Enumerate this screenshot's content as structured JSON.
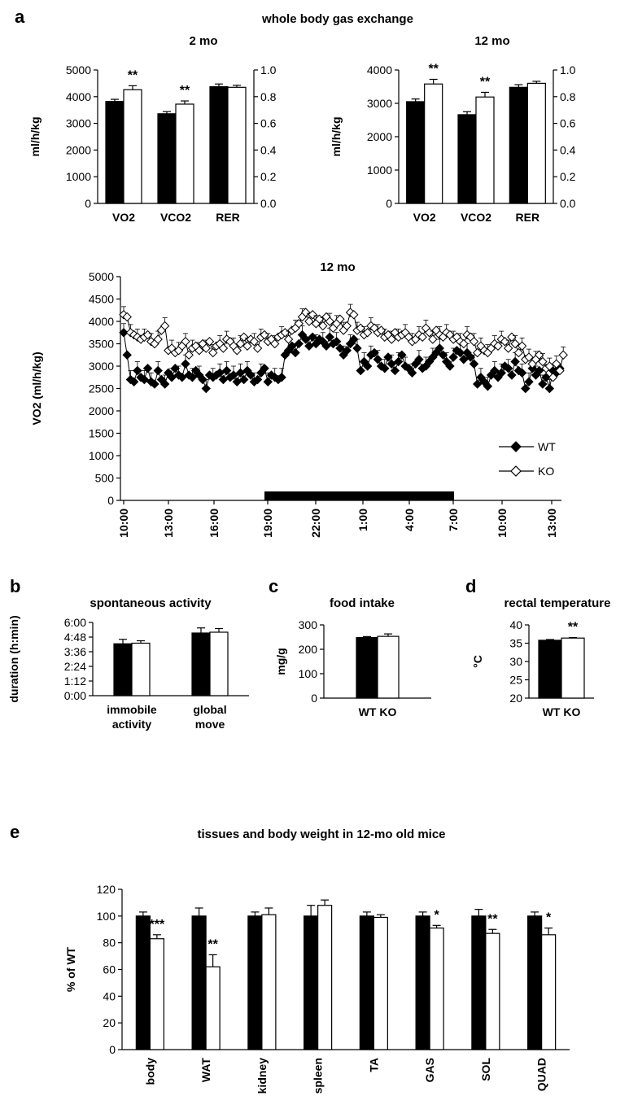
{
  "panel_a": {
    "label": "a",
    "heading": "whole body gas exchange"
  },
  "panel_b_label": "b",
  "panel_c_label": "c",
  "panel_d_label": "d",
  "panel_e_label": "e",
  "legend": {
    "wt": "WT",
    "ko": "KO"
  },
  "colors": {
    "wt": "#000000",
    "ko": "#ffffff",
    "dark_period": "#000000"
  },
  "chart_data": [
    {
      "id": "gas_2mo",
      "type": "bar",
      "title": "2 mo",
      "ylabel": "ml/h/kg",
      "ylim": [
        0,
        5000
      ],
      "yticks": [
        "0",
        "1000",
        "2000",
        "3000",
        "4000",
        "5000"
      ],
      "y2lim": [
        0,
        1.0
      ],
      "y2ticks": [
        "0.0",
        "0.2",
        "0.4",
        "0.6",
        "0.8",
        "1.0"
      ],
      "categories": [
        "VO2",
        "VCO2",
        "RER"
      ],
      "series": [
        {
          "name": "WT",
          "values": [
            3820,
            3360,
            0.875
          ],
          "errors": [
            80,
            80,
            0.02
          ]
        },
        {
          "name": "KO",
          "values": [
            4260,
            3720,
            0.87
          ],
          "errors": [
            150,
            120,
            0.015
          ]
        }
      ],
      "significance": [
        "**",
        "**",
        ""
      ]
    },
    {
      "id": "gas_12mo",
      "type": "bar",
      "title": "12 mo",
      "ylabel": "ml/h/kg",
      "ylim": [
        0,
        4000
      ],
      "yticks": [
        "0",
        "1000",
        "2000",
        "3000",
        "4000"
      ],
      "y2lim": [
        0,
        1.0
      ],
      "y2ticks": [
        "0.0",
        "0.2",
        "0.4",
        "0.6",
        "0.8",
        "1.0"
      ],
      "categories": [
        "VO2",
        "VCO2",
        "RER"
      ],
      "series": [
        {
          "name": "WT",
          "values": [
            3050,
            2660,
            0.87
          ],
          "errors": [
            80,
            90,
            0.02
          ]
        },
        {
          "name": "KO",
          "values": [
            3580,
            3190,
            0.9
          ],
          "errors": [
            140,
            140,
            0.015
          ]
        }
      ],
      "significance": [
        "**",
        "**",
        ""
      ]
    },
    {
      "id": "vo2_time",
      "type": "line",
      "title": "12 mo",
      "ylabel": "VO2 (ml/h/kg)",
      "ylim": [
        0,
        5000
      ],
      "yticks": [
        "0",
        "500",
        "1000",
        "1500",
        "2000",
        "2500",
        "3000",
        "3500",
        "4000",
        "4500",
        "5000"
      ],
      "x_tick_labels": [
        "10:00",
        "13:00",
        "16:00",
        "19:00",
        "22:00",
        "1:00",
        "4:00",
        "7:00",
        "10:00",
        "13:00"
      ],
      "dark_period": [
        "19:00",
        "7:00"
      ],
      "series": [
        {
          "name": "WT",
          "values": [
            3750,
            3250,
            2700,
            2650,
            2900,
            2750,
            2700,
            2950,
            2650,
            2600,
            2900,
            2700,
            2600,
            2850,
            2750,
            2950,
            2800,
            2750,
            3050,
            2800,
            2750,
            2900,
            2800,
            2700,
            2500,
            2800,
            2750,
            2800,
            2850,
            2700,
            2900,
            2750,
            2800,
            2650,
            2850,
            2700,
            2900,
            2800,
            2650,
            2700,
            2850,
            2950,
            2650,
            2800,
            2750,
            2700,
            2750,
            3250,
            3350,
            3450,
            3300,
            3500,
            3700,
            3600,
            3450,
            3650,
            3500,
            3600,
            3550,
            3450,
            3650,
            3500,
            3550,
            3400,
            3250,
            3350,
            3500,
            3600,
            3400,
            2900,
            3100,
            3000,
            3250,
            3300,
            3150,
            3000,
            2950,
            3200,
            3050,
            2900,
            3100,
            3250,
            3000,
            2950,
            2850,
            3050,
            3150,
            2950,
            3000,
            3100,
            3200,
            3300,
            3400,
            3250,
            3100,
            3000,
            3200,
            3350,
            3300,
            3150,
            3300,
            3200,
            3050,
            2600,
            2750,
            2650,
            2550,
            2800,
            2900,
            2750,
            2850,
            3000,
            2950,
            2800,
            3100,
            2900,
            2850,
            2500,
            2650,
            2950,
            2800,
            2900,
            2600,
            2750,
            2500,
            2900,
            2850,
            2950
          ],
          "errors": 200
        },
        {
          "name": "KO",
          "values": [
            4150,
            4100,
            3750,
            3700,
            3650,
            3600,
            3650,
            3700,
            3550,
            3500,
            3600,
            3800,
            3900,
            3350,
            3400,
            3300,
            3350,
            3450,
            3550,
            3250,
            3400,
            3450,
            3350,
            3500,
            3400,
            3550,
            3300,
            3450,
            3500,
            3400,
            3600,
            3550,
            3450,
            3350,
            3500,
            3650,
            3450,
            3600,
            3550,
            3400,
            3650,
            3700,
            3550,
            3600,
            3500,
            3650,
            3700,
            3750,
            3600,
            3800,
            3850,
            3950,
            4100,
            4200,
            4000,
            4150,
            3950,
            4050,
            3900,
            4100,
            4000,
            3850,
            3950,
            4050,
            3800,
            3900,
            4200,
            4150,
            3800,
            3850,
            3700,
            3750,
            3900,
            3850,
            3750,
            3800,
            3650,
            3700,
            3600,
            3750,
            3650,
            3700,
            3750,
            3650,
            3550,
            3600,
            3700,
            3650,
            3850,
            3750,
            3600,
            3800,
            3700,
            3650,
            3750,
            3700,
            3600,
            3650,
            3550,
            3500,
            3700,
            3650,
            3550,
            3300,
            3450,
            3350,
            3300,
            3400,
            3500,
            3450,
            3600,
            3550,
            3400,
            3650,
            3500,
            3300,
            3450,
            3150,
            3200,
            3050,
            3150,
            3250,
            3100,
            2950,
            3000,
            2750,
            3050,
            2900,
            3250
          ],
          "errors": 180
        }
      ]
    },
    {
      "id": "activity",
      "type": "bar",
      "title": "spontaneous activity",
      "ylabel": "duration (h:min)",
      "ylim": [
        0,
        360
      ],
      "yticks": [
        "0:00",
        "1:12",
        "2:24",
        "3:36",
        "4:48",
        "6:00"
      ],
      "categories": [
        [
          "immobile",
          "activity"
        ],
        [
          "global",
          "move"
        ]
      ],
      "series": [
        {
          "name": "WT",
          "values": [
            255,
            308
          ],
          "errors": [
            22,
            25
          ]
        },
        {
          "name": "KO",
          "values": [
            258,
            312
          ],
          "errors": [
            12,
            18
          ]
        }
      ]
    },
    {
      "id": "food",
      "type": "bar",
      "title": "food intake",
      "ylabel": "mg/g",
      "ylim": [
        0,
        300
      ],
      "yticks": [
        "0",
        "100",
        "200",
        "300"
      ],
      "categories": [
        "WT KO"
      ],
      "series": [
        {
          "name": "WT",
          "values": [
            248
          ],
          "errors": [
            4
          ]
        },
        {
          "name": "KO",
          "values": [
            253
          ],
          "errors": [
            10
          ]
        }
      ]
    },
    {
      "id": "temperature",
      "type": "bar",
      "title": "rectal temperature",
      "ylabel": "°C",
      "ylim": [
        20,
        40
      ],
      "yticks": [
        "20",
        "25",
        "30",
        "35",
        "40"
      ],
      "categories": [
        "WT KO"
      ],
      "series": [
        {
          "name": "WT",
          "values": [
            35.8
          ],
          "errors": [
            0.2
          ]
        },
        {
          "name": "KO",
          "values": [
            36.4
          ],
          "errors": [
            0.15
          ]
        }
      ],
      "significance": [
        "**"
      ]
    },
    {
      "id": "tissues",
      "type": "bar",
      "title": "tissues and body weight in 12-mo old mice",
      "ylabel": "% of WT",
      "ylim": [
        0,
        120
      ],
      "yticks": [
        "0",
        "20",
        "40",
        "60",
        "80",
        "100",
        "120"
      ],
      "categories": [
        "body",
        "WAT",
        "kidney",
        "spleen",
        "TA",
        "GAS",
        "SOL",
        "QUAD"
      ],
      "series": [
        {
          "name": "WT",
          "values": [
            100,
            100,
            100,
            100,
            100,
            100,
            100,
            100
          ],
          "errors": [
            3,
            6,
            3,
            8,
            3,
            3,
            5,
            3
          ]
        },
        {
          "name": "KO",
          "values": [
            83,
            62,
            101,
            108,
            99,
            91,
            87,
            86
          ],
          "errors": [
            3,
            9,
            5,
            4,
            2,
            2,
            3,
            5
          ]
        }
      ],
      "significance": [
        "***",
        "**",
        "",
        "",
        "",
        "*",
        "**",
        "*"
      ]
    }
  ]
}
